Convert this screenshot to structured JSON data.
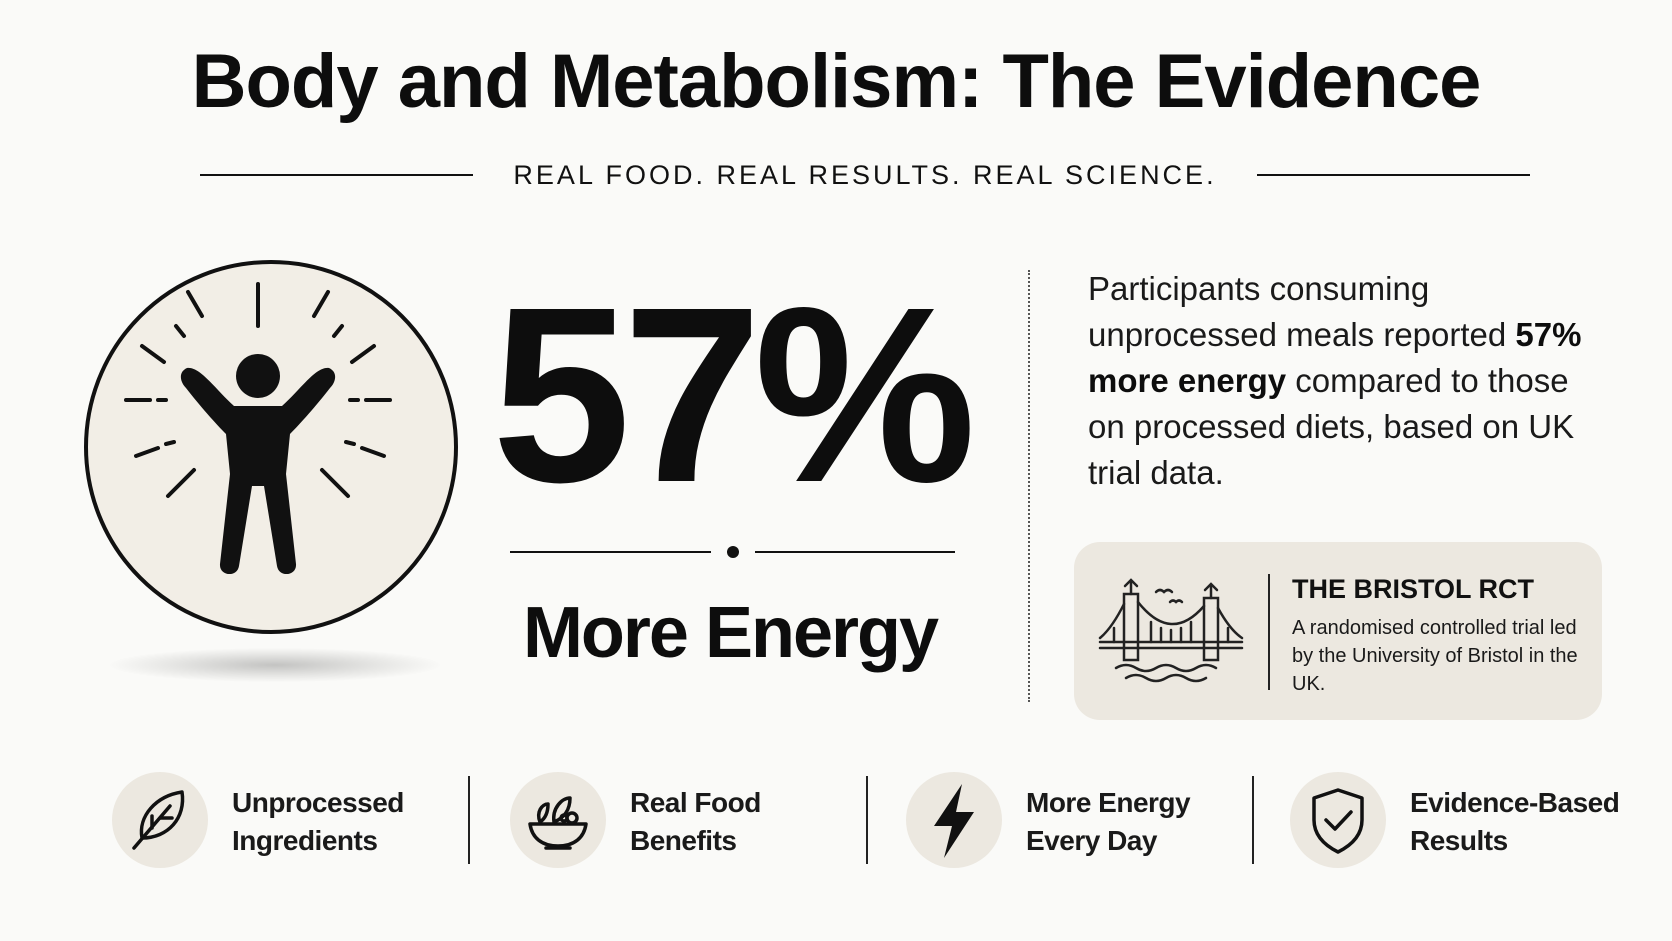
{
  "title": "Body and Metabolism: The Evidence",
  "tagline": "REAL FOOD. REAL RESULTS. REAL SCIENCE.",
  "hero": {
    "icon": "energetic-person-icon",
    "stat_value": "57%",
    "stat_label": "More Energy"
  },
  "description": {
    "part1": "Participants consuming unprocessed meals reported ",
    "highlight": "57% more energy",
    "part2": " compared to those on processed diets, based on UK trial data."
  },
  "study_card": {
    "icon": "suspension-bridge-icon",
    "title": "THE BRISTOL RCT",
    "body": "A randomised controlled trial led by the University of Bristol in the UK."
  },
  "features": [
    {
      "icon": "leaf-icon",
      "line1": "Unprocessed",
      "line2": "Ingredients"
    },
    {
      "icon": "salad-bowl-icon",
      "line1": "Real Food",
      "line2": "Benefits"
    },
    {
      "icon": "lightning-bolt-icon",
      "line1": "More Energy",
      "line2": "Every Day"
    },
    {
      "icon": "shield-check-icon",
      "line1": "Evidence-Based",
      "line2": "Results"
    }
  ],
  "colors": {
    "background": "#fafaf8",
    "text": "#111111",
    "icon_fill": "#ece8e0"
  }
}
